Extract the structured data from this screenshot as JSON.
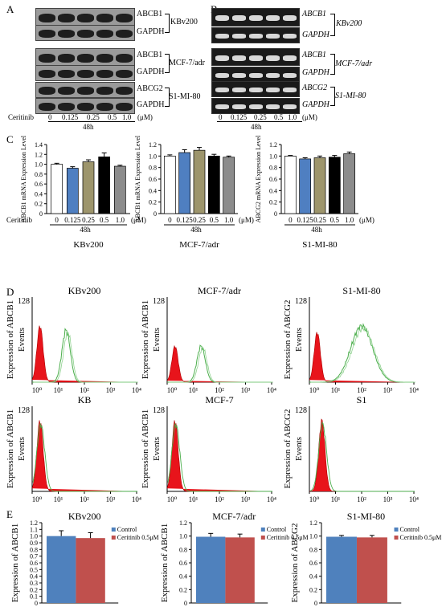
{
  "panels": {
    "a": "A",
    "b": "B",
    "c": "C",
    "d": "D",
    "e": "E"
  },
  "panel_a": {
    "rows": [
      {
        "label": "ABCB1",
        "group": "KBv200"
      },
      {
        "label": "GAPDH"
      },
      {
        "label": "ABCB1",
        "group": "MCF-7/adr"
      },
      {
        "label": "GAPDH"
      },
      {
        "label": "ABCG2",
        "group": "S1-MI-80"
      },
      {
        "label": "GAPDH"
      }
    ],
    "treatment_label": "Ceritinib",
    "doses": [
      "0",
      "0.125",
      "0.25",
      "0.5",
      "1.0"
    ],
    "unit": "(μM)",
    "time": "48h"
  },
  "panel_b": {
    "rows": [
      {
        "label": "ABCB1",
        "group": "KBv200"
      },
      {
        "label": "GAPDH"
      },
      {
        "label": "ABCB1",
        "group": "MCF-7/adr"
      },
      {
        "label": "GAPDH"
      },
      {
        "label": "ABCG2",
        "group": "S1-MI-80"
      },
      {
        "label": "GAPDH"
      }
    ],
    "doses": [
      "0",
      "0.125",
      "0.25",
      "0.5",
      "1.0"
    ],
    "unit": "(μM)",
    "time": "48h"
  },
  "panel_c": {
    "treatment_label": "Ceritinib",
    "doses": [
      "0",
      "0.125",
      "0.25",
      "0.5",
      "1.0"
    ],
    "unit": "(μM)",
    "time": "48h",
    "bar_colors": [
      "#ffffff",
      "#4f7fc1",
      "#9d956c",
      "#000000",
      "#8c8c8c"
    ]
  },
  "panel_d": {
    "events_label": "Events",
    "y_tick": "128",
    "x_ticks": [
      "10⁰",
      "10¹",
      "10²",
      "10³",
      "10⁴"
    ]
  },
  "panel_e": {
    "legend_control": "Control",
    "legend_treated": "Ceritinib 0.5μM",
    "colors": {
      "control": "#4f81bd",
      "treated": "#c0504d"
    }
  },
  "chart_data": [
    {
      "type": "bar",
      "panel": "C",
      "title": "KBv200",
      "ylabel": "ABCB1 mRNA Expression Level",
      "ylim": [
        0,
        1.4
      ],
      "yticks": [
        "0",
        "0.2",
        "0.4",
        "0.6",
        "0.8",
        "1.0",
        "1.2",
        "1.4"
      ],
      "categories": [
        "0",
        "0.125",
        "0.25",
        "0.5",
        "1.0"
      ],
      "values": [
        1.0,
        0.92,
        1.05,
        1.15,
        0.96
      ],
      "errors": [
        0.02,
        0.03,
        0.04,
        0.08,
        0.02
      ]
    },
    {
      "type": "bar",
      "panel": "C",
      "title": "MCF-7/adr",
      "ylabel": "ABCB1 mRNA Expression Level",
      "ylim": [
        0,
        1.2
      ],
      "yticks": [
        "0",
        "0.2",
        "0.4",
        "0.6",
        "0.8",
        "1.0",
        "1.2"
      ],
      "categories": [
        "0",
        "0.125",
        "0.25",
        "0.5",
        "1.0"
      ],
      "values": [
        1.0,
        1.06,
        1.1,
        1.0,
        0.98
      ],
      "errors": [
        0.02,
        0.05,
        0.05,
        0.03,
        0.02
      ]
    },
    {
      "type": "bar",
      "panel": "C",
      "title": "S1-MI-80",
      "ylabel": "ABCG2 mRNA Expression Level",
      "ylim": [
        0,
        1.2
      ],
      "yticks": [
        "0",
        "0.2",
        "0.4",
        "0.6",
        "0.8",
        "1.0",
        "1.2"
      ],
      "categories": [
        "0",
        "0.125",
        "0.25",
        "0.5",
        "1.0"
      ],
      "values": [
        1.0,
        0.95,
        0.97,
        0.98,
        1.04
      ],
      "errors": [
        0.01,
        0.02,
        0.03,
        0.03,
        0.03
      ]
    },
    {
      "type": "bar",
      "panel": "E",
      "title": "KBv200",
      "ylabel": "Expression of ABCB1",
      "ylim": [
        0,
        1.2
      ],
      "yticks": [
        "0",
        "0.1",
        "0.2",
        "0.3",
        "0.4",
        "0.5",
        "0.6",
        "0.7",
        "0.8",
        "0.9",
        "1.0",
        "1.1",
        "1.2"
      ],
      "series": [
        {
          "name": "Control",
          "values": [
            1.0
          ],
          "errors": [
            0.08
          ]
        },
        {
          "name": "Ceritinib 0.5μM",
          "values": [
            0.97
          ],
          "errors": [
            0.08
          ]
        }
      ]
    },
    {
      "type": "bar",
      "panel": "E",
      "title": "MCF-7/adr",
      "ylabel": "Expression of ABCB1",
      "ylim": [
        0,
        1.2
      ],
      "yticks": [
        "0",
        "0.2",
        "0.4",
        "0.6",
        "0.8",
        "1.0",
        "1.2"
      ],
      "series": [
        {
          "name": "Control",
          "values": [
            0.99
          ],
          "errors": [
            0.05
          ]
        },
        {
          "name": "Ceritinib 0.5μM",
          "values": [
            0.98
          ],
          "errors": [
            0.05
          ]
        }
      ]
    },
    {
      "type": "bar",
      "panel": "E",
      "title": "S1-MI-80",
      "ylabel": "Expression of ABCG2",
      "ylim": [
        0,
        1.2
      ],
      "yticks": [
        "0",
        "0.2",
        "0.4",
        "0.6",
        "0.8",
        "1.0",
        "1.2"
      ],
      "series": [
        {
          "name": "Control",
          "values": [
            0.99
          ],
          "errors": [
            0.02
          ]
        },
        {
          "name": "Ceritinib 0.5μM",
          "values": [
            0.98
          ],
          "errors": [
            0.03
          ]
        }
      ]
    },
    {
      "type": "histogram",
      "panel": "D",
      "title": "KBv200",
      "ylabel": "Expression of ABCB1",
      "control_peak": 2,
      "treated_peak": 20
    },
    {
      "type": "histogram",
      "panel": "D",
      "title": "MCF-7/adr",
      "ylabel": "Expression of ABCB1",
      "control_peak": 2,
      "treated_peak": 20
    },
    {
      "type": "histogram",
      "panel": "D",
      "title": "S1-MI-80",
      "ylabel": "Expression of ABCG2",
      "control_peak": 2,
      "treated_peak": 100
    },
    {
      "type": "histogram",
      "panel": "D",
      "title": "KB",
      "ylabel": "Expression of ABCB1",
      "control_peak": 2,
      "treated_peak": 2
    },
    {
      "type": "histogram",
      "panel": "D",
      "title": "MCF-7",
      "ylabel": "Expression of ABCB1",
      "control_peak": 2,
      "treated_peak": 2
    },
    {
      "type": "histogram",
      "panel": "D",
      "title": "S1",
      "ylabel": "Expression of ABCG2",
      "control_peak": 3,
      "treated_peak": 3
    }
  ]
}
